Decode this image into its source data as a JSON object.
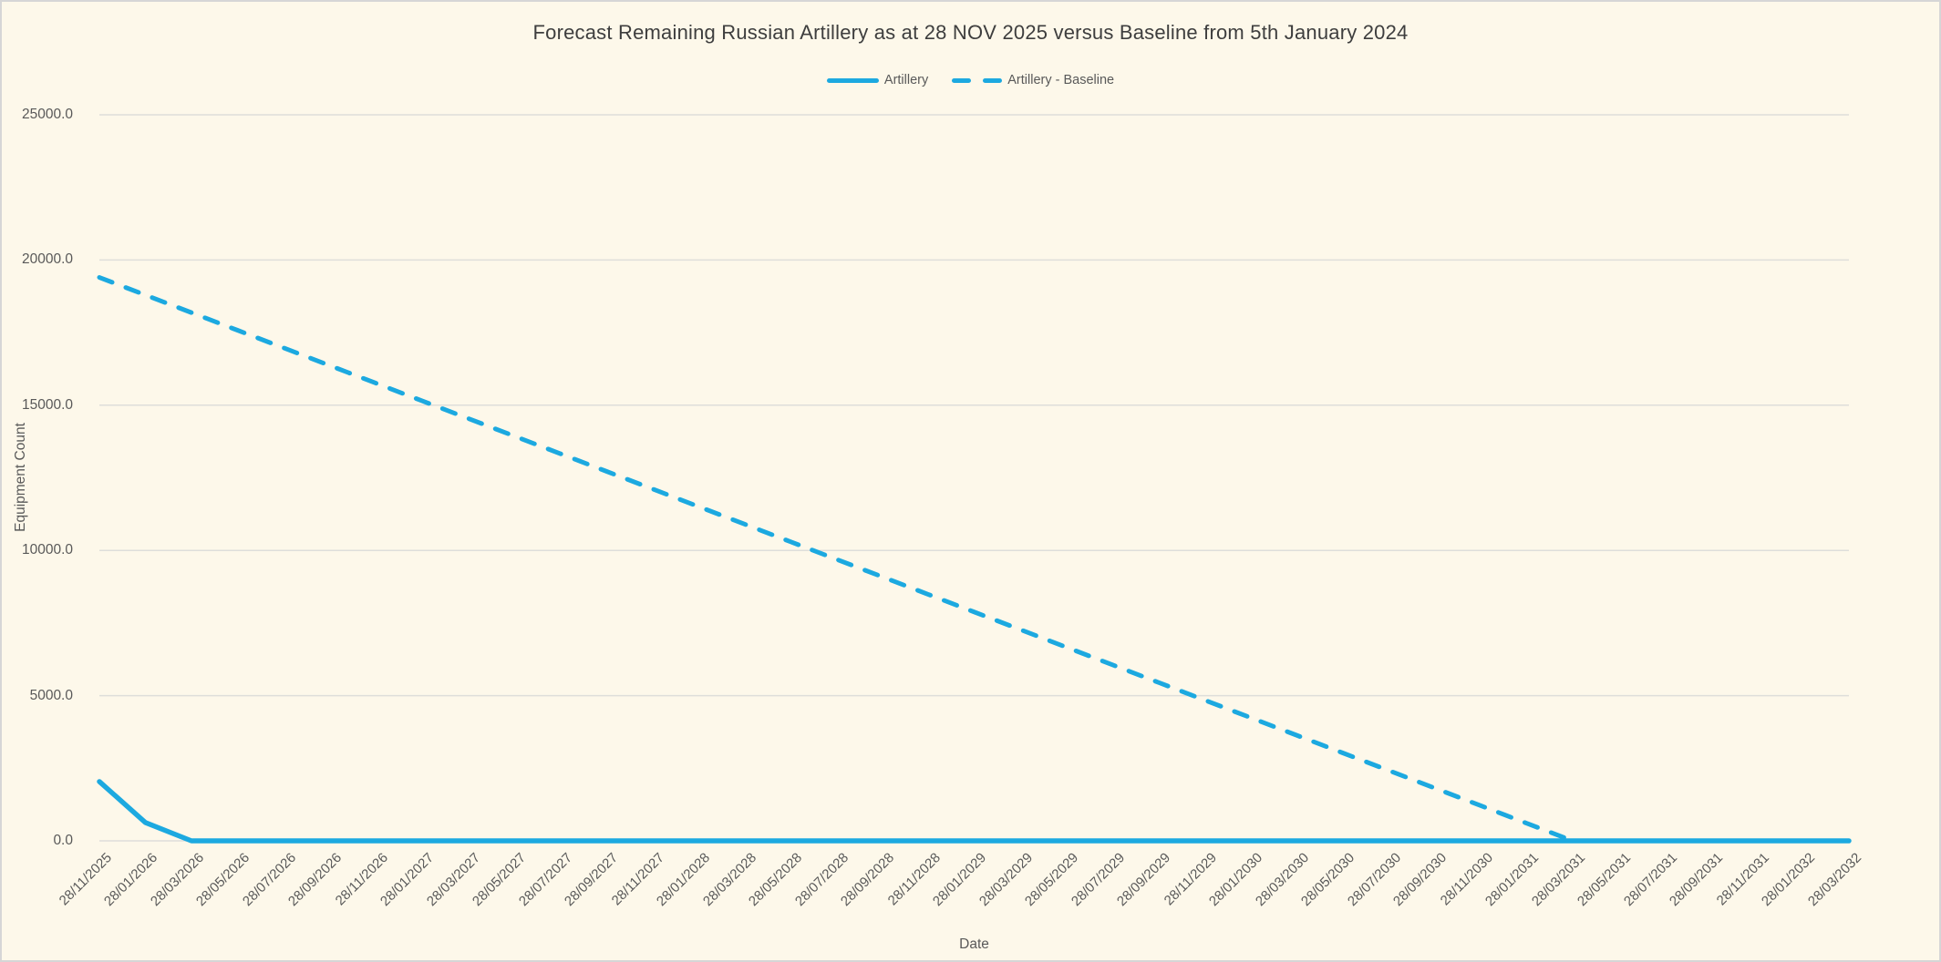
{
  "window": {
    "background_color": "#FDF8EA",
    "border_color": "#D6D6D6"
  },
  "colors": {
    "accent_blue": "#1CA9E0",
    "grid_line": "#DEDEDA",
    "axis_text": "#595959",
    "title_text": "#3E3E3E"
  },
  "chart_data": {
    "type": "line",
    "title": "Forecast Remaining Russian Artillery as at 28 NOV 2025 versus Baseline from 5th January 2024",
    "xlabel": "Date",
    "ylabel": "Equipment Count",
    "ylim": [
      0,
      25000
    ],
    "y_ticks": [
      0,
      5000,
      10000,
      15000,
      20000,
      25000
    ],
    "y_tick_labels": [
      "0.0",
      "5000.0",
      "10000.0",
      "15000.0",
      "20000.0",
      "25000.0"
    ],
    "grid": true,
    "legend_position": "top-center",
    "categories": [
      "28/11/2025",
      "28/01/2026",
      "28/03/2026",
      "28/05/2026",
      "28/07/2026",
      "28/09/2026",
      "28/11/2026",
      "28/01/2027",
      "28/03/2027",
      "28/05/2027",
      "28/07/2027",
      "28/09/2027",
      "28/11/2027",
      "28/01/2028",
      "28/03/2028",
      "28/05/2028",
      "28/07/2028",
      "28/09/2028",
      "28/11/2028",
      "28/01/2029",
      "28/03/2029",
      "28/05/2029",
      "28/07/2029",
      "28/09/2029",
      "28/11/2029",
      "28/01/2030",
      "28/03/2030",
      "28/05/2030",
      "28/07/2030",
      "28/09/2030",
      "28/11/2030",
      "28/01/2031",
      "28/03/2031",
      "28/05/2031",
      "28/07/2031",
      "28/09/2031",
      "28/11/2031",
      "28/01/2032",
      "28/03/2032"
    ],
    "series": [
      {
        "name": "Artillery",
        "style": "solid",
        "color": "#1CA9E0",
        "values": [
          2040,
          630,
          0,
          0,
          0,
          0,
          0,
          0,
          0,
          0,
          0,
          0,
          0,
          0,
          0,
          0,
          0,
          0,
          0,
          0,
          0,
          0,
          0,
          0,
          0,
          0,
          0,
          0,
          0,
          0,
          0,
          0,
          0,
          0,
          0,
          0,
          0,
          0,
          0
        ]
      },
      {
        "name": "Artillery - Baseline",
        "style": "dashed",
        "color": "#1CA9E0",
        "values": [
          19400,
          18794,
          18188,
          17581,
          16975,
          16369,
          15763,
          15156,
          14550,
          13944,
          13338,
          12731,
          12125,
          11519,
          10913,
          10306,
          9700,
          9094,
          8488,
          7881,
          7275,
          6669,
          6063,
          5456,
          4850,
          4244,
          3638,
          3031,
          2425,
          1819,
          1213,
          606,
          0,
          0,
          0,
          0,
          0,
          0,
          0
        ]
      }
    ]
  }
}
